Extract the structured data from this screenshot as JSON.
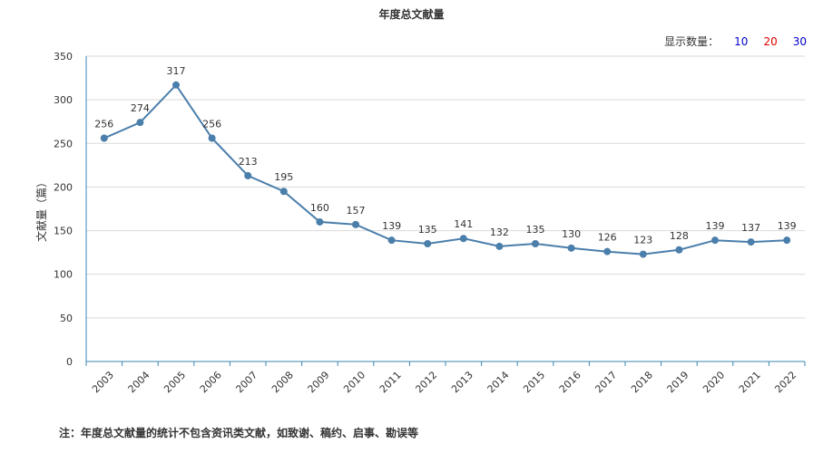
{
  "title": "年度总文献量",
  "display_count": {
    "label": "显示数量：",
    "options": [
      {
        "value": "10",
        "color": "#0000cc"
      },
      {
        "value": "20",
        "color": "#dd0000"
      },
      {
        "value": "30",
        "color": "#0000cc"
      }
    ]
  },
  "footnote": "注：年度总文献量的统计不包含资讯类文献，如致谢、稿约、启事、勘误等",
  "chart_data": {
    "type": "line",
    "title": "年度总文献量",
    "xlabel": "",
    "ylabel": "文献量（篇）",
    "categories": [
      "2003",
      "2004",
      "2005",
      "2006",
      "2007",
      "2008",
      "2009",
      "2010",
      "2011",
      "2012",
      "2013",
      "2014",
      "2015",
      "2016",
      "2017",
      "2018",
      "2019",
      "2020",
      "2021",
      "2022"
    ],
    "series": [
      {
        "values": [
          256,
          274,
          317,
          256,
          213,
          195,
          160,
          157,
          139,
          135,
          141,
          132,
          135,
          130,
          126,
          123,
          128,
          139,
          137,
          139
        ]
      }
    ],
    "ylim": [
      0,
      350
    ],
    "yticks": [
      0,
      50,
      100,
      150,
      200,
      250,
      300,
      350
    ],
    "grid": true,
    "legend": "none",
    "line_color": "#4a7eab"
  }
}
